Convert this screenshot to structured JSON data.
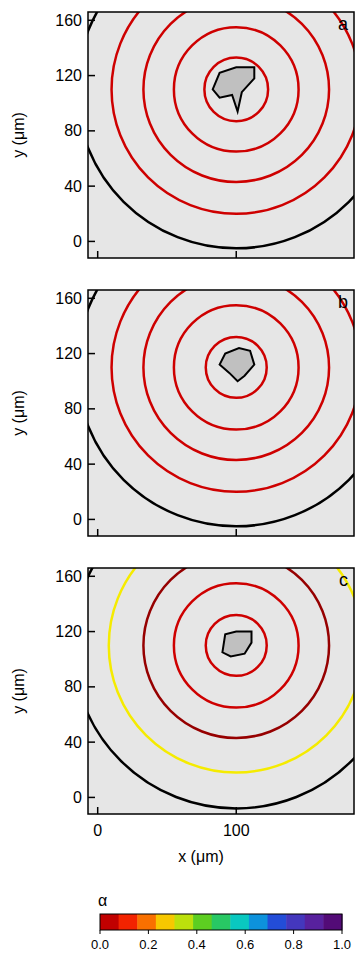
{
  "chart_data": [
    {
      "type": "rings",
      "label": "a",
      "y_label": "y (μm)",
      "tick_labels": "y",
      "xlim": [
        -7,
        185
      ],
      "ylim": [
        -12,
        166
      ],
      "xticks": [
        0,
        100
      ],
      "yticks": [
        0,
        40,
        80,
        120,
        160
      ],
      "rings": {
        "center": [
          100,
          110
        ],
        "radii": [
          23,
          45,
          67,
          90
        ],
        "alpha": [
          0.05,
          0.05,
          0.05,
          0.05
        ]
      },
      "boundary": {
        "radius": 115
      },
      "particle": {
        "x": [
          83,
          88,
          100,
          113,
          113,
          104,
          101,
          97,
          88
        ],
        "y": [
          110,
          122,
          126,
          126,
          118,
          108,
          94,
          106,
          104
        ]
      }
    },
    {
      "type": "rings",
      "label": "b",
      "y_label": "y (μm)",
      "tick_labels": "y",
      "xlim": [
        -7,
        185
      ],
      "ylim": [
        -12,
        166
      ],
      "xticks": [
        0,
        100
      ],
      "yticks": [
        0,
        40,
        80,
        120,
        160
      ],
      "rings": {
        "center": [
          100,
          110
        ],
        "radii": [
          22,
          45,
          67,
          90
        ],
        "alpha": [
          0.05,
          0.05,
          0.05,
          0.05
        ]
      },
      "boundary": {
        "radius": 115
      },
      "particle": {
        "x": [
          88,
          92,
          102,
          110,
          113,
          106,
          101,
          95
        ],
        "y": [
          112,
          120,
          124,
          122,
          112,
          104,
          100,
          106
        ]
      }
    },
    {
      "type": "rings",
      "label": "c",
      "y_label": "y (μm)",
      "x_label": "x (μm)",
      "xlim": [
        -7,
        185
      ],
      "ylim": [
        -12,
        166
      ],
      "xticks": [
        0,
        100
      ],
      "yticks": [
        0,
        40,
        80,
        120,
        160
      ],
      "rings": {
        "center": [
          100,
          110
        ],
        "radii": [
          22,
          45,
          67,
          92
        ],
        "alpha": [
          0.05,
          0.05,
          0.0,
          0.3
        ]
      },
      "boundary": {
        "radius": 118
      },
      "particle": {
        "x": [
          90,
          92,
          100,
          111,
          111,
          106,
          96
        ],
        "y": [
          105,
          118,
          120,
          120,
          112,
          104,
          102
        ]
      },
      "colorbar": {
        "label": "α",
        "range": [
          0,
          1
        ],
        "ticks": [
          {
            "value": 0,
            "label": "0.0"
          },
          {
            "value": 0.2,
            "label": "0.2"
          },
          {
            "value": 0.4,
            "label": "0.4"
          },
          {
            "value": 0.6,
            "label": "0.6"
          },
          {
            "value": 0.8,
            "label": "0.8"
          },
          {
            "value": 1,
            "label": "1.0"
          }
        ]
      }
    }
  ]
}
